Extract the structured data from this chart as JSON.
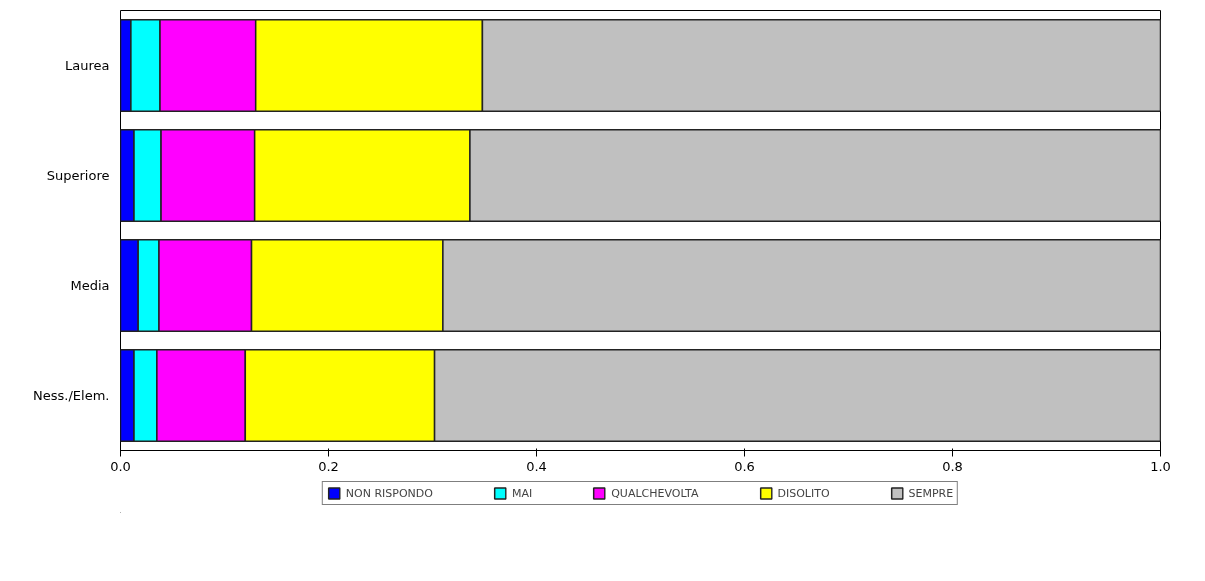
{
  "chart_data": {
    "type": "bar",
    "orientation": "horizontal",
    "stacked": true,
    "categories": [
      "Laurea",
      "Superiore",
      "Media",
      "Ness./Elem."
    ],
    "series": [
      {
        "name": "NON RISPONDO",
        "color": "#0000ff",
        "values": [
          0.01,
          0.013,
          0.017,
          0.013
        ]
      },
      {
        "name": "MAI",
        "color": "#00ffff",
        "values": [
          0.028,
          0.026,
          0.02,
          0.022
        ]
      },
      {
        "name": "QUALCHEVOLTA",
        "color": "#ff00ff",
        "values": [
          0.092,
          0.09,
          0.089,
          0.085
        ]
      },
      {
        "name": "DISOLITO",
        "color": "#ffff00",
        "values": [
          0.218,
          0.207,
          0.184,
          0.182
        ]
      },
      {
        "name": "SEMPRE",
        "color": "#c0c0c0",
        "values": [
          0.652,
          0.664,
          0.69,
          0.698
        ]
      }
    ],
    "xlim": [
      0,
      1
    ],
    "xticks": [
      {
        "value": 0,
        "label": "0.0"
      },
      {
        "value": 0.2,
        "label": "0.2"
      },
      {
        "value": 0.4,
        "label": "0.4"
      },
      {
        "value": 0.6,
        "label": "0.6"
      },
      {
        "value": 0.8,
        "label": "0.8"
      },
      {
        "value": 1,
        "label": "1.0"
      }
    ],
    "grid": false,
    "legend": "bottom"
  }
}
